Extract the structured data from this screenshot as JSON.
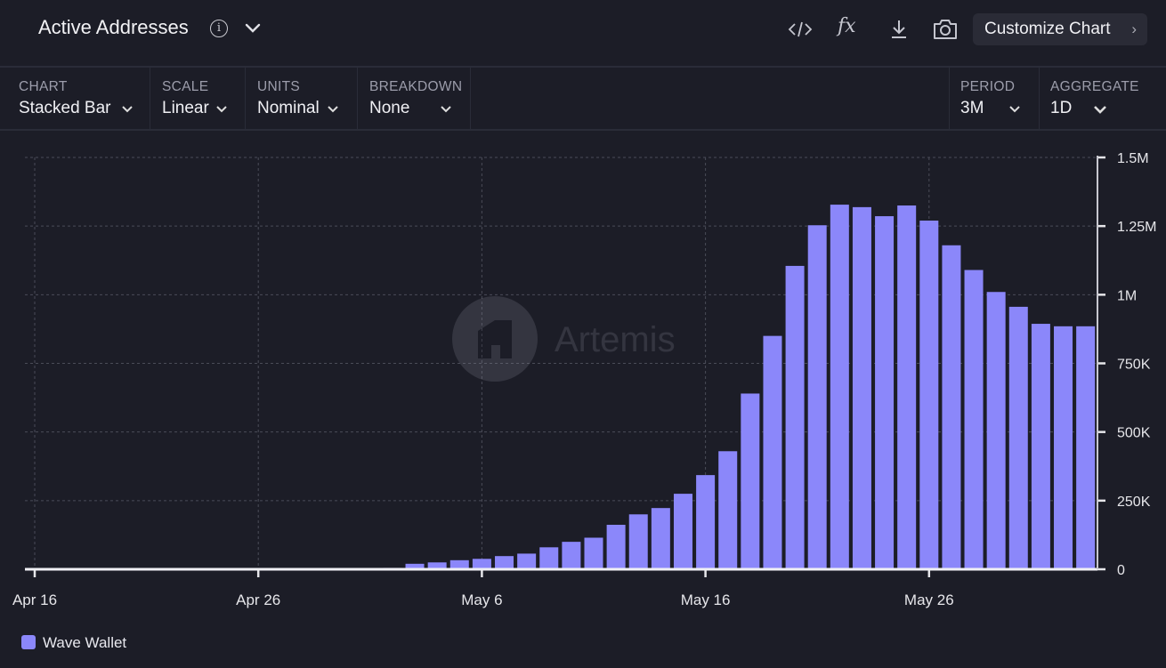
{
  "header": {
    "title": "Active Addresses",
    "info_icon": "info-icon",
    "tools": [
      "embed-code-icon",
      "formula-fx-icon",
      "download-icon",
      "camera-icon"
    ],
    "fx_label": "fx",
    "customize_label": "Customize Chart"
  },
  "controls": {
    "chart": {
      "label": "CHART",
      "value": "Stacked Bar"
    },
    "scale": {
      "label": "SCALE",
      "value": "Linear"
    },
    "units": {
      "label": "UNITS",
      "value": "Nominal"
    },
    "breakdown": {
      "label": "BREAKDOWN",
      "value": "None"
    },
    "period": {
      "label": "PERIOD",
      "value": "3M"
    },
    "aggregate": {
      "label": "AGGREGATE",
      "value": "1D"
    }
  },
  "watermark": "Artemis",
  "chart_data": {
    "type": "bar",
    "stacked": true,
    "grid": true,
    "legend_position": "bottom-left",
    "x_ticks": [
      "Apr 16",
      "Apr 26",
      "May 6",
      "May 16",
      "May 26"
    ],
    "y_ticks": [
      "0",
      "250K",
      "500K",
      "750K",
      "1M",
      "1.25M",
      "1.5M"
    ],
    "y_tick_values": [
      0,
      250000,
      500000,
      750000,
      1000000,
      1250000,
      1500000
    ],
    "ylim": [
      0,
      1500000
    ],
    "xlim": [
      "Apr 16",
      "Jun 2"
    ],
    "colors": {
      "series": "#8b87fa",
      "background": "#1c1d27"
    },
    "categories": [
      "May 2",
      "May 3",
      "May 4",
      "May 5",
      "May 6",
      "May 7",
      "May 8",
      "May 9",
      "May 10",
      "May 11",
      "May 12",
      "May 13",
      "May 14",
      "May 15",
      "May 16",
      "May 17",
      "May 18",
      "May 19",
      "May 20",
      "May 21",
      "May 22",
      "May 23",
      "May 24",
      "May 25",
      "May 26",
      "May 27",
      "May 28",
      "May 29",
      "May 30",
      "May 31",
      "Jun 1",
      "Jun 2"
    ],
    "series": [
      {
        "name": "Wave Wallet",
        "color": "#8b87fa",
        "values": [
          5000,
          20000,
          25000,
          33000,
          38000,
          48000,
          57000,
          80000,
          100000,
          115000,
          162000,
          200000,
          223000,
          275000,
          343000,
          430000,
          640000,
          850000,
          1105000,
          1253000,
          1328000,
          1319000,
          1286000,
          1325000,
          1270000,
          1180000,
          1090000,
          1010000,
          956000,
          894000,
          885000,
          885000
        ]
      }
    ]
  }
}
